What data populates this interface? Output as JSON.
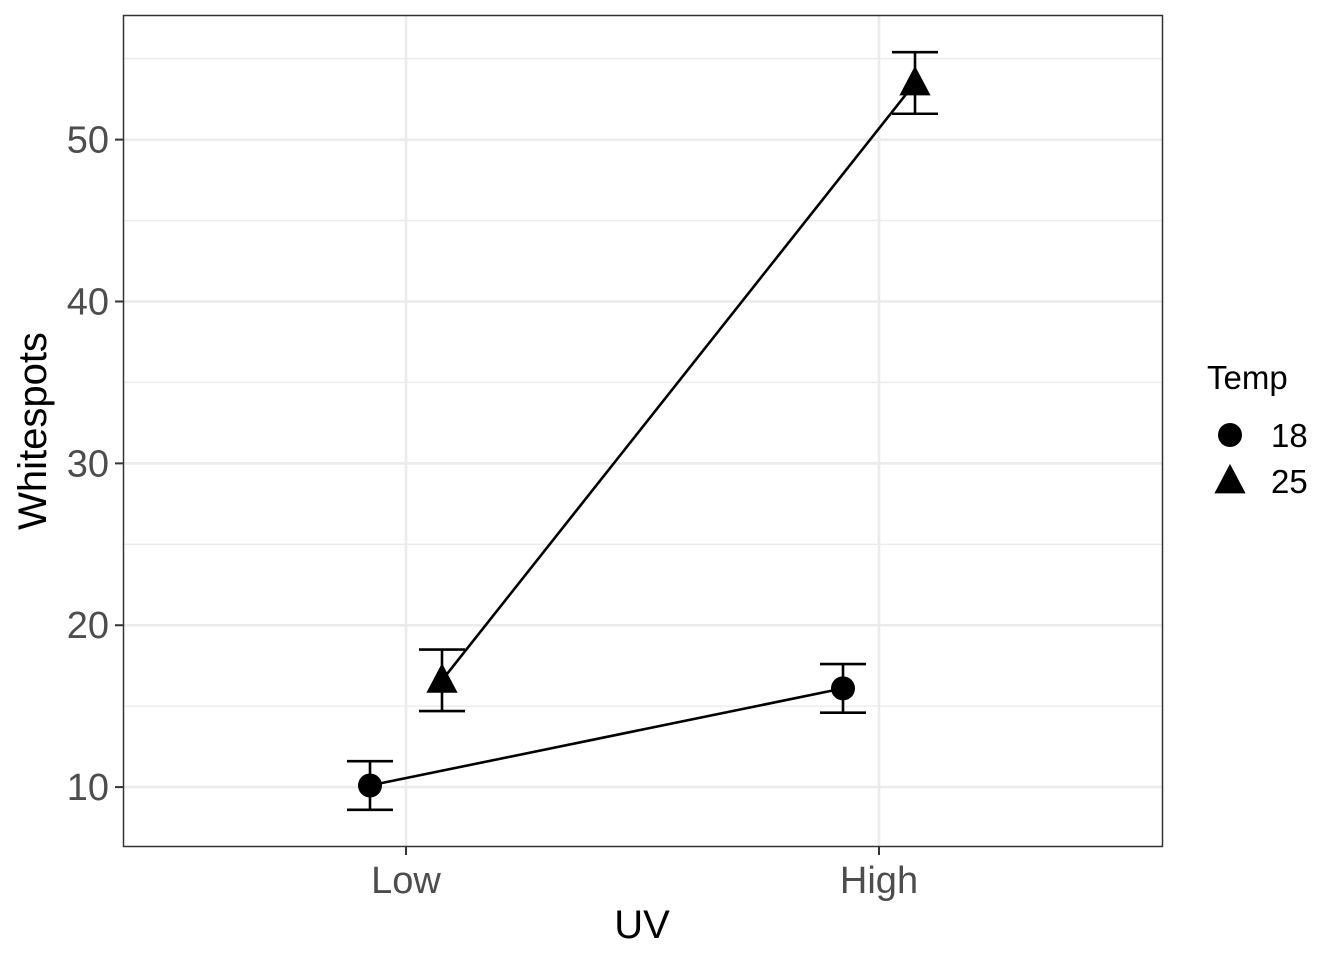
{
  "chart_data": {
    "type": "line",
    "xlabel": "UV",
    "ylabel": "Whitespots",
    "categories": [
      "Low",
      "High"
    ],
    "y_ticks": [
      10,
      20,
      30,
      40,
      50
    ],
    "ylim": [
      6.3,
      57.7
    ],
    "grid": true,
    "legend": {
      "title": "Temp",
      "placement": "right"
    },
    "series": [
      {
        "name": "18",
        "marker": "circle",
        "values": [
          10.1,
          16.1
        ],
        "error_low": [
          8.6,
          14.6
        ],
        "error_high": [
          11.6,
          17.6
        ]
      },
      {
        "name": "25",
        "marker": "triangle",
        "values": [
          16.6,
          53.5
        ],
        "error_low": [
          14.7,
          51.6
        ],
        "error_high": [
          18.5,
          55.4
        ]
      }
    ],
    "colors": {
      "series": "#000000",
      "grid": "#ebebeb",
      "panel_border": "#333333",
      "tick_text": "#4d4d4d"
    }
  }
}
